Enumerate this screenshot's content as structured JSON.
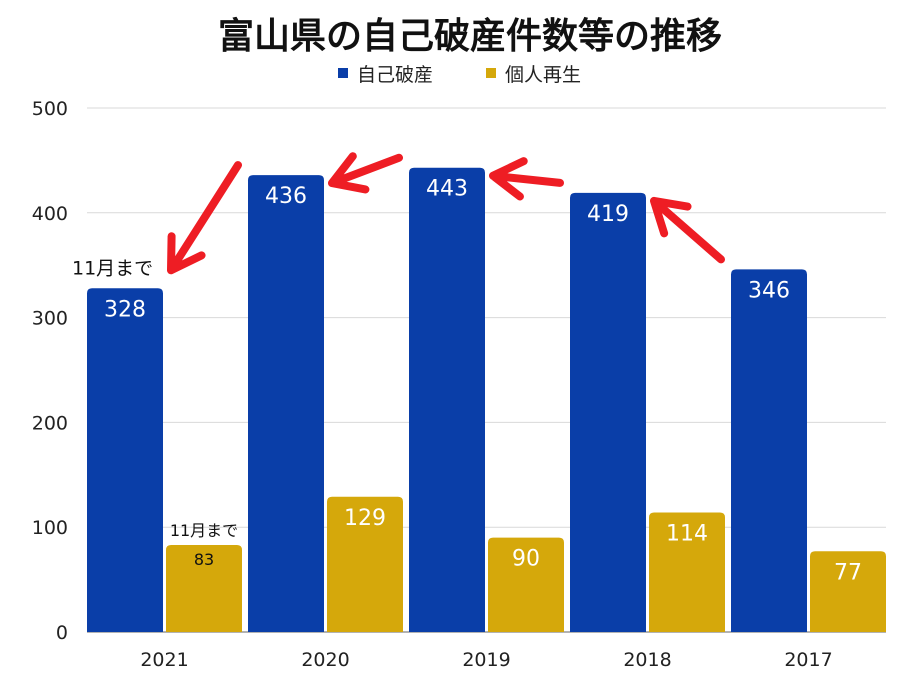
{
  "title": "富山県の自己破産件数等の推移",
  "chart_data": {
    "type": "bar",
    "categories": [
      "2021",
      "2020",
      "2019",
      "2018",
      "2017"
    ],
    "series": [
      {
        "name": "自己破産",
        "color": "#0a3ea8",
        "values": [
          328,
          436,
          443,
          419,
          346
        ]
      },
      {
        "name": "個人再生",
        "color": "#d5a80b",
        "values": [
          83,
          129,
          90,
          114,
          77
        ]
      }
    ],
    "ylim": [
      0,
      500
    ],
    "yticks": [
      0,
      100,
      200,
      300,
      400,
      500
    ],
    "grid": true,
    "legend": "top-center",
    "annotations": [
      {
        "text": "11月まで",
        "category": "2021",
        "series": "自己破産"
      },
      {
        "text": "11月まで",
        "category": "2021",
        "series": "個人再生"
      }
    ],
    "arrow_color": "#ee1d24"
  }
}
